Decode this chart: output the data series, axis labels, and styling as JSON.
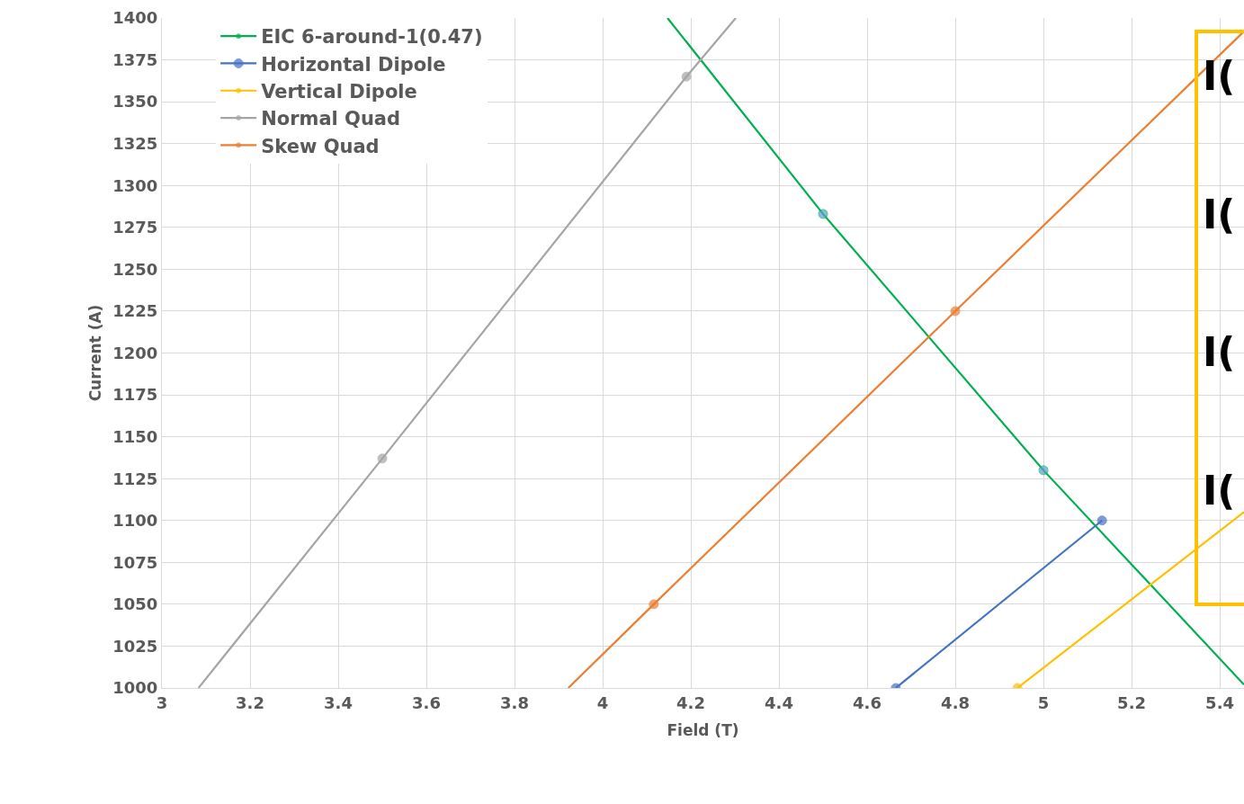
{
  "chart_data": {
    "type": "line",
    "xlabel": "Field (T)",
    "ylabel": "Current (A)",
    "xlim": [
      3,
      5.455
    ],
    "ylim": [
      1000,
      1400
    ],
    "xticks": [
      3,
      3.2,
      3.4,
      3.6,
      3.8,
      4,
      4.2,
      4.4,
      4.6,
      4.8,
      5,
      5.2,
      5.4
    ],
    "yticks": [
      1000,
      1025,
      1050,
      1075,
      1100,
      1125,
      1150,
      1175,
      1200,
      1225,
      1250,
      1275,
      1300,
      1325,
      1350,
      1375,
      1400
    ],
    "grid": true,
    "legend": "top left",
    "marker": "circle",
    "line_style": "solid",
    "series": [
      {
        "name": "EIC 6-around-1(0.47)",
        "color": "#00B050",
        "colors": [
          null,
          "#5B9BD5",
          "#5B9BD5",
          null
        ],
        "x": [
          4.147,
          4.5,
          5,
          5.455
        ],
        "values": [
          1400,
          1283,
          1130,
          1002
        ]
      },
      {
        "name": "Horizontal Dipole",
        "color": "#4472C4",
        "x": [
          4.665,
          5.133
        ],
        "values": [
          1000,
          1100
        ]
      },
      {
        "name": "Vertical Dipole",
        "color": "#FFC000",
        "colors": [
          "#FFC000",
          null
        ],
        "x": [
          4.941,
          5.455
        ],
        "values": [
          1000,
          1105
        ]
      },
      {
        "name": "Normal Quad",
        "color": "#A5A5A5",
        "colors": [
          null,
          "#A5A5A5",
          "#A5A5A5",
          null
        ],
        "x": [
          3.083,
          3.5,
          4.19,
          4.302
        ],
        "values": [
          1000,
          1137,
          1365,
          1400
        ]
      },
      {
        "name": "Skew Quad",
        "color": "#ED7D31",
        "colors": [
          null,
          "#ED7D31",
          "#ED7D31",
          null
        ],
        "x": [
          3.922,
          4.116,
          4.8,
          5.455
        ],
        "values": [
          1000,
          1050,
          1225,
          1392
        ]
      }
    ],
    "annotations": [
      "I(",
      "I(",
      "I(",
      "I("
    ]
  }
}
